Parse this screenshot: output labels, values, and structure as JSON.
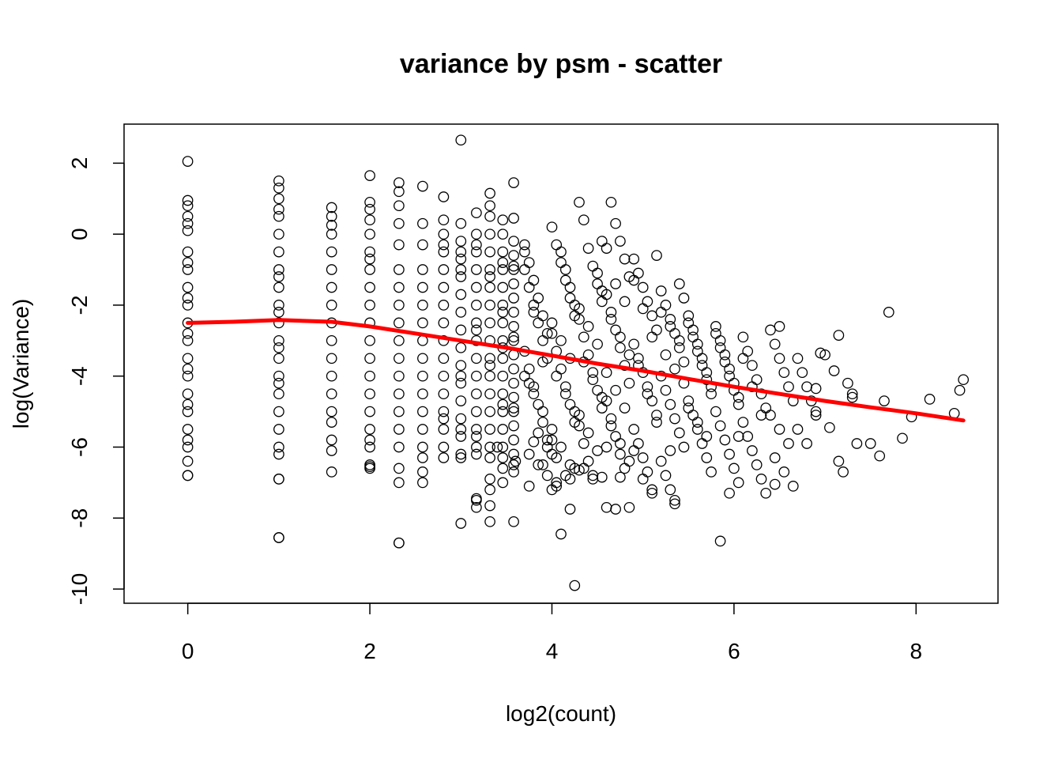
{
  "chart_data": {
    "type": "scatter",
    "title": "variance by psm - scatter",
    "xlabel": "log2(count)",
    "ylabel": "log(Variance)",
    "xlim": [
      -0.7,
      8.9
    ],
    "ylim": [
      -10.4,
      3.1
    ],
    "x_ticks": [
      0,
      2,
      4,
      6,
      8
    ],
    "y_ticks": [
      -10,
      -8,
      -6,
      -4,
      -2,
      0,
      2
    ],
    "grid": false,
    "legend": "none",
    "point_color": "#000000",
    "trend_color": "#ff0000",
    "trend": {
      "name": "",
      "x": [
        0.0,
        0.5,
        1.0,
        1.58,
        2.0,
        2.5,
        3.0,
        3.5,
        4.0,
        4.5,
        5.0,
        5.5,
        6.0,
        6.5,
        7.0,
        7.5,
        8.0,
        8.52
      ],
      "y": [
        -2.5,
        -2.47,
        -2.42,
        -2.47,
        -2.6,
        -2.8,
        -3.0,
        -3.2,
        -3.42,
        -3.65,
        -3.85,
        -4.08,
        -4.3,
        -4.5,
        -4.7,
        -4.88,
        -5.05,
        -5.25
      ]
    },
    "series": [
      {
        "name": "",
        "x": [
          0,
          0,
          0,
          0,
          0,
          0,
          0,
          0,
          0,
          0,
          0,
          0,
          0,
          0,
          0,
          0,
          0,
          0,
          0,
          0,
          0,
          0,
          0,
          0,
          0,
          0,
          1,
          1,
          1,
          1,
          1,
          1,
          1,
          1,
          1,
          1,
          1,
          1,
          1,
          1,
          1,
          1,
          1,
          1,
          1,
          1,
          1,
          1,
          1,
          1,
          1,
          1.58,
          1.58,
          1.58,
          1.58,
          1.58,
          1.58,
          1.58,
          1.58,
          1.58,
          1.58,
          1.58,
          1.58,
          1.58,
          1.58,
          1.58,
          1.58,
          1.58,
          1.58,
          2,
          2,
          2,
          2,
          2,
          2,
          2,
          2,
          2,
          2,
          2,
          2,
          2,
          2,
          2,
          2,
          2,
          2,
          2,
          2,
          2,
          2.32,
          2.32,
          2.32,
          2.32,
          2.32,
          2.32,
          2.32,
          2.32,
          2.32,
          2.32,
          2.32,
          2.32,
          2.32,
          2.32,
          2.32,
          2.32,
          2.32,
          2.32,
          2.32,
          2.58,
          2.58,
          2.58,
          2.58,
          2.58,
          2.58,
          2.58,
          2.58,
          2.58,
          2.58,
          2.58,
          2.58,
          2.58,
          2.58,
          2.58,
          2.58,
          2.58,
          2.81,
          2.81,
          2.81,
          2.81,
          2.81,
          2.81,
          2.81,
          2.81,
          2.81,
          2.81,
          2.81,
          2.81,
          2.81,
          2.81,
          2.81,
          2.81,
          2.81,
          2.81,
          3,
          3,
          3,
          3,
          3,
          3,
          3,
          3,
          3,
          3,
          3,
          3,
          3,
          3,
          3,
          3,
          3,
          3,
          3,
          3,
          3.17,
          3.17,
          3.17,
          3.17,
          3.17,
          3.17,
          3.17,
          3.17,
          3.17,
          3.17,
          3.17,
          3.17,
          3.17,
          3.17,
          3.17,
          3.17,
          3.17,
          3.17,
          3.17,
          3.17,
          3.32,
          3.32,
          3.32,
          3.32,
          3.32,
          3.32,
          3.32,
          3.32,
          3.32,
          3.32,
          3.32,
          3.32,
          3.32,
          3.32,
          3.32,
          3.32,
          3.32,
          3.32,
          3.32,
          3.32,
          3.32,
          3.32,
          3.46,
          3.46,
          3.46,
          3.46,
          3.46,
          3.46,
          3.46,
          3.46,
          3.46,
          3.46,
          3.46,
          3.46,
          3.46,
          3.46,
          3.46,
          3.46,
          3.46,
          3.46,
          3.46,
          3.46,
          3.46,
          3.58,
          3.58,
          3.58,
          3.58,
          3.58,
          3.58,
          3.58,
          3.58,
          3.58,
          3.58,
          3.58,
          3.58,
          3.58,
          3.58,
          3.58,
          3.58,
          3.58,
          3.58,
          3.58,
          3.58,
          3.58,
          3.58,
          3.58,
          3.7,
          3.75,
          3.8,
          3.85,
          3.9,
          3.95,
          3.7,
          3.75,
          3.8,
          3.85,
          3.9,
          3.95,
          3.7,
          3.75,
          3.8,
          3.85,
          3.9,
          3.95,
          3.7,
          3.8,
          3.9,
          3.75,
          3.85,
          3.95,
          3.7,
          3.8,
          3.9,
          3.75,
          3.85,
          3.95,
          4,
          4.05,
          4.1,
          4.15,
          4.2,
          4.25,
          4,
          4.05,
          4.1,
          4.15,
          4.2,
          4.25,
          4,
          4.05,
          4.1,
          4.15,
          4.2,
          4.25,
          4,
          4.1,
          4.2,
          4.05,
          4.15,
          4.25,
          4,
          4.1,
          4.2,
          4.05,
          4.15,
          4.25,
          4.3,
          4.35,
          4.4,
          4.45,
          4.5,
          4.55,
          4.3,
          4.35,
          4.4,
          4.45,
          4.5,
          4.55,
          4.3,
          4.35,
          4.4,
          4.45,
          4.5,
          4.55,
          4.3,
          4.4,
          4.5,
          4.35,
          4.45,
          4.55,
          4.3,
          4.4,
          4.5,
          4.35,
          4.45,
          4.55,
          4.6,
          4.65,
          4.7,
          4.75,
          4.8,
          4.85,
          4.6,
          4.65,
          4.7,
          4.75,
          4.8,
          4.85,
          4.6,
          4.65,
          4.7,
          4.75,
          4.8,
          4.85,
          4.6,
          4.7,
          4.8,
          4.65,
          4.75,
          4.85,
          4.6,
          4.7,
          4.8,
          4.65,
          4.75,
          4.85,
          4.9,
          4.95,
          5,
          5.05,
          5.1,
          5.15,
          4.9,
          4.95,
          5,
          5.05,
          5.1,
          5.15,
          4.9,
          4.95,
          5,
          5.05,
          5.1,
          5.15,
          4.9,
          5,
          5.1,
          4.95,
          5.05,
          5.15,
          4.9,
          5,
          5.1,
          5.2,
          5.25,
          5.3,
          5.35,
          5.4,
          5.45,
          5.2,
          5.25,
          5.3,
          5.35,
          5.4,
          5.45,
          5.2,
          5.25,
          5.3,
          5.35,
          5.4,
          5.45,
          5.2,
          5.3,
          5.4,
          5.25,
          5.35,
          5.45,
          5.5,
          5.55,
          5.6,
          5.65,
          5.7,
          5.75,
          5.5,
          5.55,
          5.6,
          5.65,
          5.7,
          5.75,
          5.5,
          5.55,
          5.6,
          5.65,
          5.7,
          5.75,
          5.5,
          5.6,
          5.7,
          5.8,
          5.85,
          5.9,
          5.95,
          6.0,
          6.05,
          5.8,
          5.85,
          5.9,
          5.95,
          6.0,
          6.05,
          5.8,
          5.85,
          5.9,
          5.95,
          6.0,
          6.05,
          6.1,
          6.15,
          6.2,
          6.25,
          6.3,
          6.35,
          6.1,
          6.15,
          6.2,
          6.25,
          6.3,
          6.35,
          6.1,
          6.2,
          6.3,
          6.4,
          6.45,
          6.5,
          6.55,
          6.6,
          6.65,
          6.4,
          6.5,
          6.6,
          6.45,
          6.55,
          6.65,
          6.7,
          6.75,
          6.8,
          6.85,
          6.9,
          6.7,
          6.8,
          6.9,
          4.25,
          5.85,
          1,
          2.32,
          3.0,
          3.58,
          2.0,
          1.0,
          0.0,
          4.7,
          6.95,
          7.05,
          7.15,
          7.25,
          7.3,
          7.35,
          7.5,
          7.65,
          7.7,
          7.85,
          7.95,
          8.15,
          8.42,
          8.48,
          8.52,
          7.2,
          7.3,
          7.1,
          7.6,
          4.1,
          4.0,
          4.2,
          3.17,
          3.32,
          3.8,
          4.55,
          4.75,
          5.3,
          5.35,
          5.95,
          6.45,
          7.15,
          4.05,
          3.6,
          3.4,
          6.9,
          7.0,
          6.5,
          6.05,
          4.3,
          4.0,
          3.75,
          4.6,
          3.9,
          4.2
        ],
        "y": [
          2.05,
          0.95,
          0.5,
          0.1,
          -0.5,
          -1.0,
          -1.5,
          -2.0,
          -2.5,
          -3.0,
          -3.5,
          -4.0,
          -4.5,
          -5.0,
          -5.5,
          -6.0,
          -6.4,
          -6.8,
          0.8,
          0.3,
          -0.8,
          -1.8,
          -2.8,
          -3.8,
          -4.8,
          -5.8,
          1.5,
          1.3,
          1.0,
          0.5,
          0,
          -0.5,
          -1.0,
          -1.5,
          -2.0,
          -2.5,
          -3.0,
          -3.5,
          -4.0,
          -4.5,
          -5.0,
          -5.5,
          -6.0,
          -6.2,
          -6.9,
          -8.55,
          0.7,
          -1.2,
          -2.2,
          -3.2,
          -4.2,
          0.75,
          0.5,
          0,
          -0.5,
          -1.0,
          -1.5,
          -2.0,
          -2.5,
          -3.0,
          -3.5,
          -4.0,
          -4.5,
          -5.0,
          -5.3,
          -5.8,
          -6.1,
          -6.7,
          0.25,
          1.65,
          0.9,
          0.4,
          0,
          -0.5,
          -1.0,
          -1.5,
          -2.0,
          -2.5,
          -3.0,
          -3.5,
          -4.0,
          -4.5,
          -5.0,
          -5.5,
          -6.0,
          -6.5,
          -6.6,
          0.7,
          -0.7,
          -5.8,
          1.45,
          1.2,
          0.8,
          0.3,
          -0.3,
          -1.0,
          -1.5,
          -2.0,
          -2.5,
          -3.0,
          -3.5,
          -4.0,
          -4.5,
          -5.0,
          -5.5,
          -6.0,
          -6.6,
          -7.0,
          -8.7,
          1.35,
          0.3,
          -0.3,
          -1.0,
          -1.5,
          -2.0,
          -2.5,
          -3.0,
          -3.5,
          -4.0,
          -4.5,
          -5.0,
          -5.5,
          -6.0,
          -6.3,
          -6.7,
          -7.0,
          1.05,
          0.4,
          0,
          -0.5,
          -1.0,
          -1.5,
          -2.0,
          -2.5,
          -3.0,
          -3.5,
          -4.0,
          -4.5,
          -5.0,
          -5.5,
          -6.0,
          -6.3,
          -0.3,
          -5.2,
          2.65,
          0.3,
          -0.2,
          -0.7,
          -1.2,
          -1.7,
          -2.2,
          -2.7,
          -3.2,
          -3.7,
          -4.2,
          -4.7,
          -5.2,
          -5.7,
          -6.2,
          -0.5,
          -1.0,
          -4.0,
          -5.5,
          -6.3,
          0.6,
          0,
          -0.5,
          -1.0,
          -1.5,
          -2.0,
          -2.5,
          -3.0,
          -3.5,
          -4.0,
          -4.5,
          -5.0,
          -5.5,
          -6.0,
          -6.2,
          -7.5,
          -7.7,
          -0.3,
          -2.7,
          -5.7,
          1.15,
          0.8,
          0.5,
          0,
          -0.5,
          -1.0,
          -1.5,
          -2.0,
          -2.5,
          -3.0,
          -3.5,
          -4.0,
          -4.5,
          -5.0,
          -5.5,
          -6.0,
          -6.3,
          -6.9,
          -7.2,
          -8.1,
          -1.2,
          -3.7,
          0.4,
          0,
          -0.5,
          -1.0,
          -1.5,
          -2.0,
          -2.5,
          -3.0,
          -3.5,
          -4.0,
          -4.5,
          -5.0,
          -5.5,
          -6.0,
          -6.3,
          -6.6,
          -7.0,
          -0.8,
          -2.2,
          -3.2,
          -4.8,
          1.45,
          0.45,
          -0.2,
          -0.6,
          -1.0,
          -1.4,
          -1.8,
          -2.2,
          -2.6,
          -3.0,
          -3.4,
          -3.8,
          -4.2,
          -4.6,
          -5.0,
          -5.4,
          -5.8,
          -6.2,
          -6.5,
          -6.7,
          -0.9,
          -2.9,
          -4.9,
          -0.3,
          -0.8,
          -1.3,
          -1.8,
          -2.3,
          -2.8,
          -3.3,
          -3.8,
          -4.3,
          -4.8,
          -5.3,
          -5.8,
          -1.0,
          -1.5,
          -2.0,
          -2.5,
          -3.0,
          -3.5,
          -4.0,
          -4.5,
          -5.0,
          -6.2,
          -6.5,
          -6.8,
          -0.5,
          -2.2,
          -3.6,
          -4.2,
          -5.6,
          -6.0,
          0.2,
          -0.3,
          -0.8,
          -1.3,
          -1.8,
          -2.3,
          -2.8,
          -3.3,
          -3.8,
          -4.3,
          -4.8,
          -5.3,
          -5.8,
          -6.3,
          -0.5,
          -1.0,
          -1.5,
          -2.0,
          -2.5,
          -3.0,
          -3.5,
          -4.0,
          -4.5,
          -5.0,
          -5.5,
          -6.0,
          -6.5,
          -7.1,
          -6.8,
          -6.6,
          0.9,
          0.4,
          -0.4,
          -0.9,
          -1.4,
          -1.9,
          -2.4,
          -2.9,
          -3.4,
          -3.9,
          -4.4,
          -4.9,
          -5.4,
          -5.9,
          -6.4,
          -6.8,
          -1.1,
          -1.6,
          -2.1,
          -2.6,
          -3.1,
          -3.6,
          -4.1,
          -4.6,
          -5.1,
          -5.6,
          -6.1,
          -6.6,
          -6.9,
          -0.2,
          -0.4,
          0.9,
          0.3,
          -0.2,
          -0.7,
          -1.2,
          -1.7,
          -2.2,
          -2.7,
          -3.2,
          -3.7,
          -4.2,
          -4.7,
          -5.2,
          -5.7,
          -6.2,
          -6.6,
          -7.7,
          -7.7,
          -1.4,
          -1.9,
          -2.4,
          -2.9,
          -3.4,
          -3.9,
          -4.4,
          -4.9,
          -5.4,
          -5.9,
          -6.4,
          -0.7,
          -1.1,
          -1.5,
          -1.9,
          -2.3,
          -2.7,
          -3.1,
          -3.5,
          -3.9,
          -4.3,
          -4.7,
          -5.1,
          -5.5,
          -5.9,
          -6.3,
          -6.7,
          -7.2,
          -0.6,
          -1.3,
          -2.1,
          -2.9,
          -3.7,
          -4.5,
          -5.3,
          -6.1,
          -6.9,
          -7.3,
          -1.6,
          -2.0,
          -2.4,
          -2.8,
          -3.2,
          -3.6,
          -4.0,
          -4.4,
          -4.8,
          -5.2,
          -5.6,
          -6.0,
          -6.4,
          -6.8,
          -7.2,
          -7.6,
          -1.4,
          -1.8,
          -2.2,
          -2.6,
          -3.0,
          -3.4,
          -3.8,
          -4.2,
          -2.3,
          -2.7,
          -3.1,
          -3.5,
          -3.9,
          -4.3,
          -4.7,
          -5.1,
          -5.5,
          -5.9,
          -6.3,
          -6.7,
          -2.5,
          -2.9,
          -3.3,
          -3.7,
          -4.1,
          -4.5,
          -4.9,
          -5.3,
          -5.7,
          -2.6,
          -3.0,
          -3.4,
          -3.8,
          -4.2,
          -4.6,
          -5.0,
          -5.4,
          -5.8,
          -6.2,
          -6.6,
          -7.0,
          -2.8,
          -3.2,
          -3.6,
          -4.0,
          -4.4,
          -4.8,
          -2.9,
          -3.3,
          -3.7,
          -4.1,
          -4.5,
          -4.9,
          -5.3,
          -5.7,
          -6.1,
          -6.5,
          -6.9,
          -7.3,
          -3.5,
          -4.3,
          -5.1,
          -2.7,
          -3.1,
          -3.5,
          -3.9,
          -4.3,
          -4.7,
          -5.1,
          -5.5,
          -5.9,
          -6.3,
          -6.7,
          -7.1,
          -3.5,
          -3.9,
          -4.3,
          -4.7,
          -5.1,
          -5.5,
          -5.9,
          -5.0,
          -9.9,
          -8.65,
          -8.55,
          -8.7,
          -8.15,
          -8.1,
          -6.55,
          -6.9,
          -6.8,
          -7.75,
          -3.35,
          -5.45,
          -6.4,
          -4.2,
          -4.6,
          -5.9,
          -5.9,
          -4.7,
          -2.2,
          -5.75,
          -5.15,
          -4.65,
          -5.05,
          -4.4,
          -4.1,
          -6.7,
          -4.5,
          -3.85,
          -6.25,
          -8.45,
          -7.2,
          -7.75,
          -7.45,
          -7.65,
          -5.85,
          -6.85,
          -6.85,
          -6.1,
          -7.5,
          -7.3,
          -7.05,
          -2.85,
          -7.0,
          -6.4,
          -6.0,
          -4.35,
          -3.4,
          -2.6,
          -5.7,
          -6.65,
          -6.2,
          -7.1,
          -6.0,
          -6.5,
          -6.9
        ]
      }
    ]
  }
}
